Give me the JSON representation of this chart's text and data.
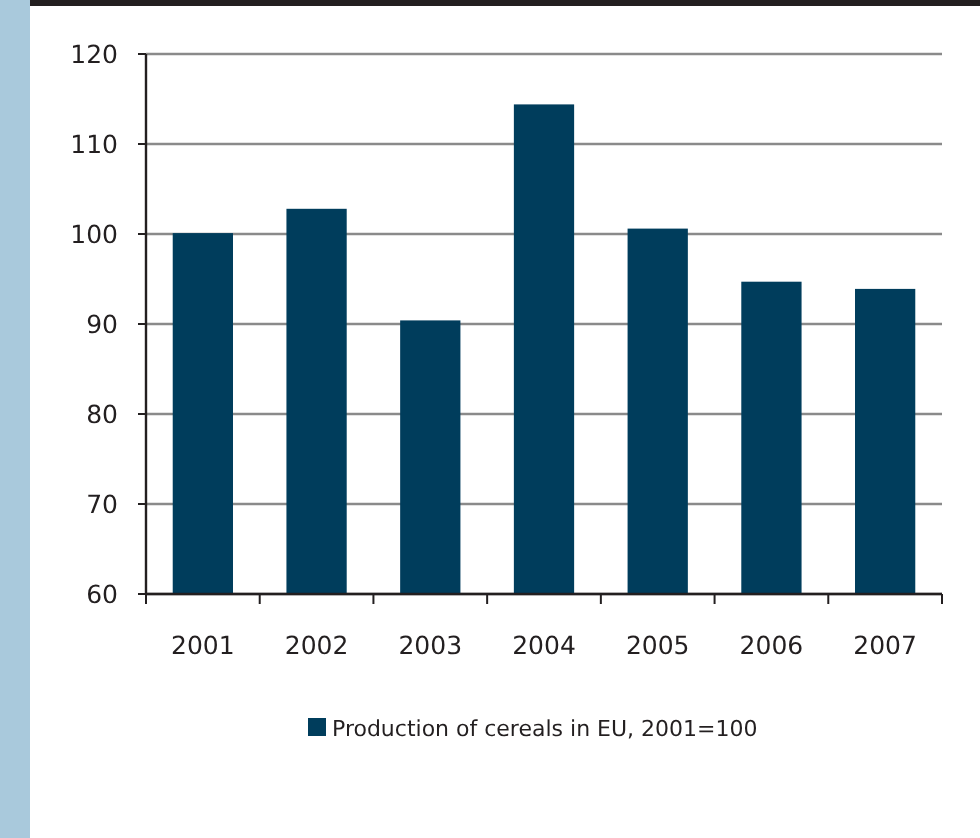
{
  "chart_data": {
    "type": "bar",
    "categories": [
      "2001",
      "2002",
      "2003",
      "2004",
      "2005",
      "2006",
      "2007"
    ],
    "series": [
      {
        "name": "Production of cereals in EU, 2001=100",
        "color": "#003d5c",
        "values": [
          100.1,
          102.8,
          90.4,
          114.4,
          100.6,
          94.7,
          93.9
        ]
      }
    ],
    "ylim": [
      60,
      120
    ],
    "yticks": [
      60,
      70,
      80,
      90,
      100,
      110,
      120
    ],
    "grid": "y",
    "legend": "bottom"
  }
}
